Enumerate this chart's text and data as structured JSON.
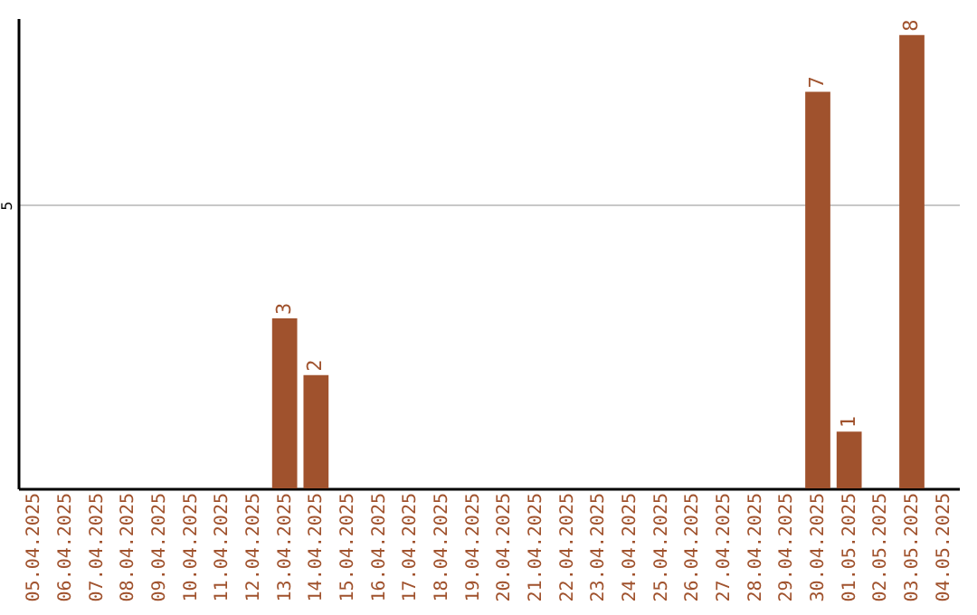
{
  "chart_data": {
    "type": "bar",
    "categories": [
      "05.04.2025",
      "06.04.2025",
      "07.04.2025",
      "08.04.2025",
      "09.04.2025",
      "10.04.2025",
      "11.04.2025",
      "12.04.2025",
      "13.04.2025",
      "14.04.2025",
      "15.04.2025",
      "16.04.2025",
      "17.04.2025",
      "18.04.2025",
      "19.04.2025",
      "20.04.2025",
      "21.04.2025",
      "22.04.2025",
      "23.04.2025",
      "24.04.2025",
      "25.04.2025",
      "26.04.2025",
      "27.04.2025",
      "28.04.2025",
      "29.04.2025",
      "30.04.2025",
      "01.05.2025",
      "02.05.2025",
      "03.05.2025",
      "04.05.2025"
    ],
    "values": [
      null,
      null,
      null,
      null,
      null,
      null,
      null,
      null,
      3,
      2,
      null,
      null,
      null,
      null,
      null,
      null,
      null,
      null,
      null,
      null,
      null,
      null,
      null,
      null,
      null,
      7,
      1,
      null,
      8,
      null
    ],
    "color": "#a0522d",
    "ylim": [
      0,
      8.3
    ],
    "yticks": [
      5
    ],
    "grid": "y",
    "data_labels": true
  }
}
